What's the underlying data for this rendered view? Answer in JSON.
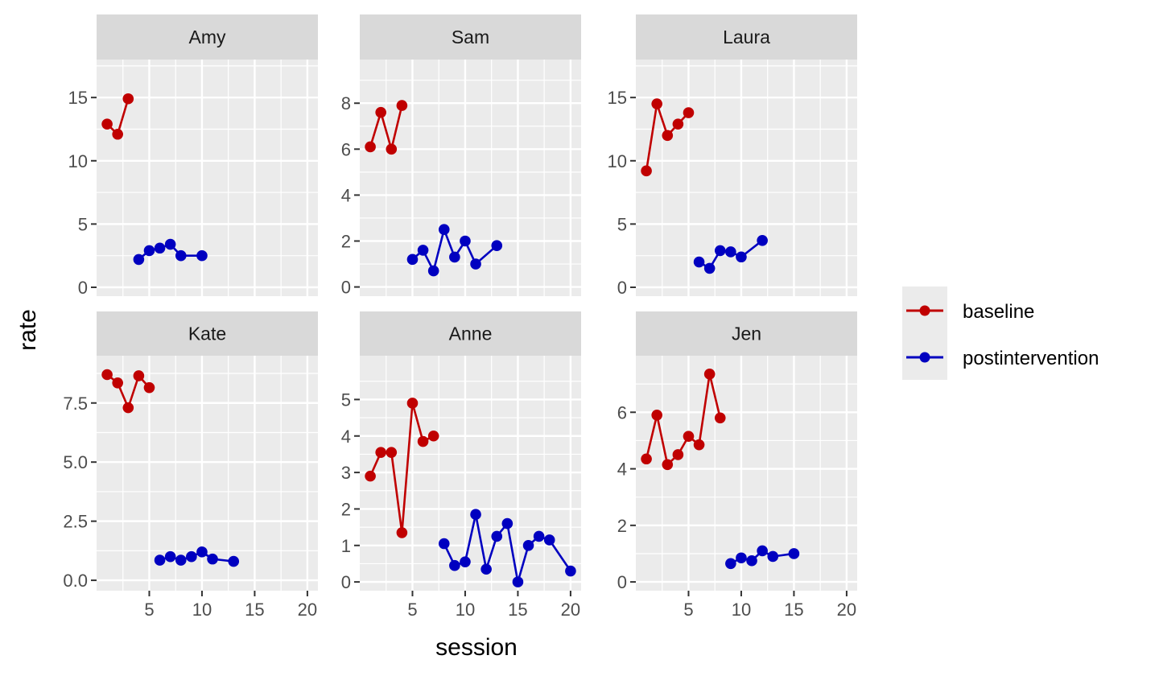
{
  "chart_data": {
    "type": "line",
    "xlabel": "session",
    "ylabel": "rate",
    "xlim": [
      0,
      21
    ],
    "x_ticks": [
      5,
      10,
      15,
      20
    ],
    "grid": true,
    "legend_position": "right",
    "legend": [
      {
        "name": "baseline",
        "color": "#C00000"
      },
      {
        "name": "postintervention",
        "color": "#0000C0"
      }
    ],
    "panels": [
      {
        "title": "Amy",
        "ylim": [
          -0.7,
          18
        ],
        "y_ticks": [
          0,
          5,
          10,
          15
        ],
        "y_tick_labels": [
          "0",
          "5",
          "10",
          "15"
        ],
        "series": [
          {
            "name": "baseline",
            "x": [
              1,
              2,
              3
            ],
            "y": [
              12.9,
              12.1,
              14.9
            ]
          },
          {
            "name": "postintervention",
            "x": [
              4,
              5,
              6,
              7,
              8,
              10
            ],
            "y": [
              2.2,
              2.9,
              3.1,
              3.4,
              2.5,
              2.5
            ]
          }
        ]
      },
      {
        "title": "Sam",
        "ylim": [
          -0.4,
          9.9
        ],
        "y_ticks": [
          0,
          2,
          4,
          6,
          8
        ],
        "y_tick_labels": [
          "0",
          "2",
          "4",
          "6",
          "8"
        ],
        "series": [
          {
            "name": "baseline",
            "x": [
              1,
              2,
              3,
              4
            ],
            "y": [
              6.1,
              7.6,
              6.0,
              7.9
            ]
          },
          {
            "name": "postintervention",
            "x": [
              5,
              6,
              7,
              8,
              9,
              10,
              11,
              13
            ],
            "y": [
              1.2,
              1.6,
              0.7,
              2.5,
              1.3,
              2.0,
              1.0,
              1.8
            ]
          }
        ]
      },
      {
        "title": "Laura",
        "ylim": [
          -0.7,
          18
        ],
        "y_ticks": [
          0,
          5,
          10,
          15
        ],
        "y_tick_labels": [
          "0",
          "5",
          "10",
          "15"
        ],
        "series": [
          {
            "name": "baseline",
            "x": [
              1,
              2,
              3,
              4,
              5
            ],
            "y": [
              9.2,
              14.5,
              12.0,
              12.9,
              13.8
            ]
          },
          {
            "name": "postintervention",
            "x": [
              6,
              7,
              8,
              9,
              10,
              12
            ],
            "y": [
              2.0,
              1.5,
              2.9,
              2.8,
              2.4,
              3.7
            ]
          }
        ]
      },
      {
        "title": "Kate",
        "ylim": [
          -0.44,
          9.5
        ],
        "y_ticks": [
          0,
          2.5,
          5,
          7.5
        ],
        "y_tick_labels": [
          "0.0",
          "2.5",
          "5.0",
          "7.5"
        ],
        "series": [
          {
            "name": "baseline",
            "x": [
              1,
              2,
              3,
              4,
              5
            ],
            "y": [
              8.7,
              8.35,
              7.3,
              8.65,
              8.15
            ]
          },
          {
            "name": "postintervention",
            "x": [
              6,
              7,
              8,
              9,
              10,
              11,
              13
            ],
            "y": [
              0.85,
              1.0,
              0.85,
              1.0,
              1.2,
              0.9,
              0.8
            ]
          }
        ]
      },
      {
        "title": "Anne",
        "ylim": [
          -0.24,
          6.2
        ],
        "y_ticks": [
          0,
          1,
          2,
          3,
          4,
          5
        ],
        "y_tick_labels": [
          "0",
          "1",
          "2",
          "3",
          "4",
          "5"
        ],
        "series": [
          {
            "name": "baseline",
            "x": [
              1,
              2,
              3,
              4,
              5,
              6,
              7
            ],
            "y": [
              2.9,
              3.55,
              3.55,
              1.35,
              4.9,
              3.85,
              4.0
            ]
          },
          {
            "name": "postintervention",
            "x": [
              8,
              9,
              10,
              11,
              12,
              13,
              14,
              15,
              16,
              17,
              18,
              20
            ],
            "y": [
              1.05,
              0.45,
              0.55,
              1.85,
              0.35,
              1.25,
              1.6,
              0.0,
              1.0,
              1.25,
              1.15,
              0.3
            ]
          }
        ]
      },
      {
        "title": "Jen",
        "ylim": [
          -0.31,
          8.0
        ],
        "y_ticks": [
          0,
          2,
          4,
          6
        ],
        "y_tick_labels": [
          "0",
          "2",
          "4",
          "6"
        ],
        "series": [
          {
            "name": "baseline",
            "x": [
              1,
              2,
              3,
              4,
              5,
              6,
              7,
              8
            ],
            "y": [
              4.35,
              5.9,
              4.15,
              4.5,
              5.15,
              4.85,
              7.35,
              5.8
            ]
          },
          {
            "name": "postintervention",
            "x": [
              9,
              10,
              11,
              12,
              13,
              15
            ],
            "y": [
              0.65,
              0.85,
              0.75,
              1.1,
              0.9,
              1.0
            ]
          }
        ]
      }
    ]
  }
}
